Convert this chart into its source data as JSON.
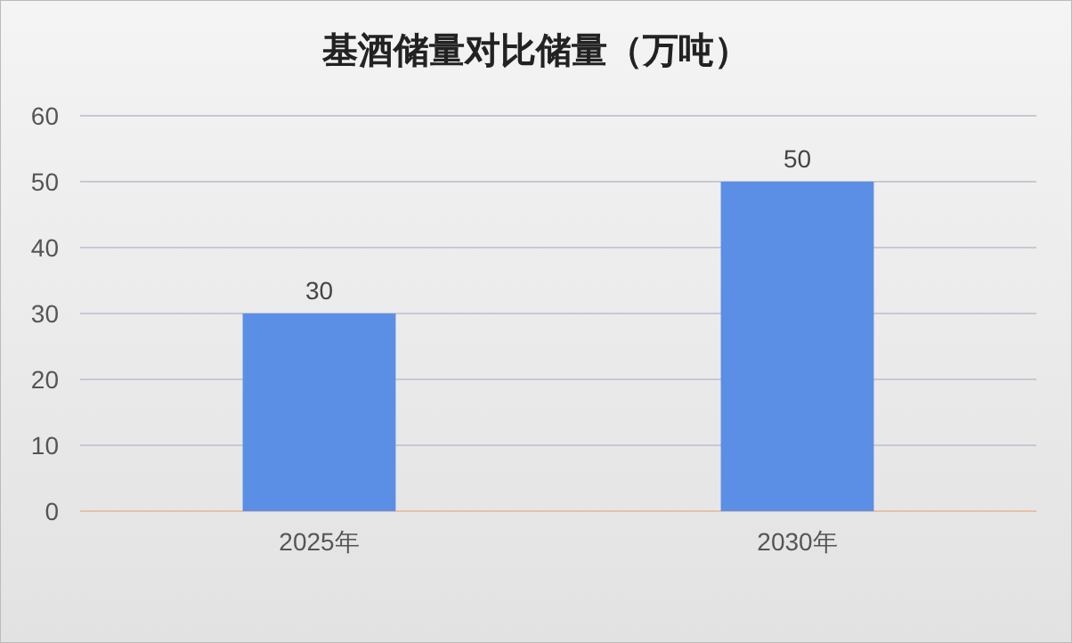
{
  "chart_data": {
    "type": "bar",
    "title": "基酒储量对比储量（万吨）",
    "categories": [
      "2025年",
      "2030年"
    ],
    "values": [
      30,
      50
    ],
    "color": "#5b8fe6",
    "ylim": [
      0,
      60
    ],
    "yticks": [
      0,
      10,
      20,
      30,
      40,
      50,
      60
    ],
    "grid": "y",
    "data_labels": true
  }
}
